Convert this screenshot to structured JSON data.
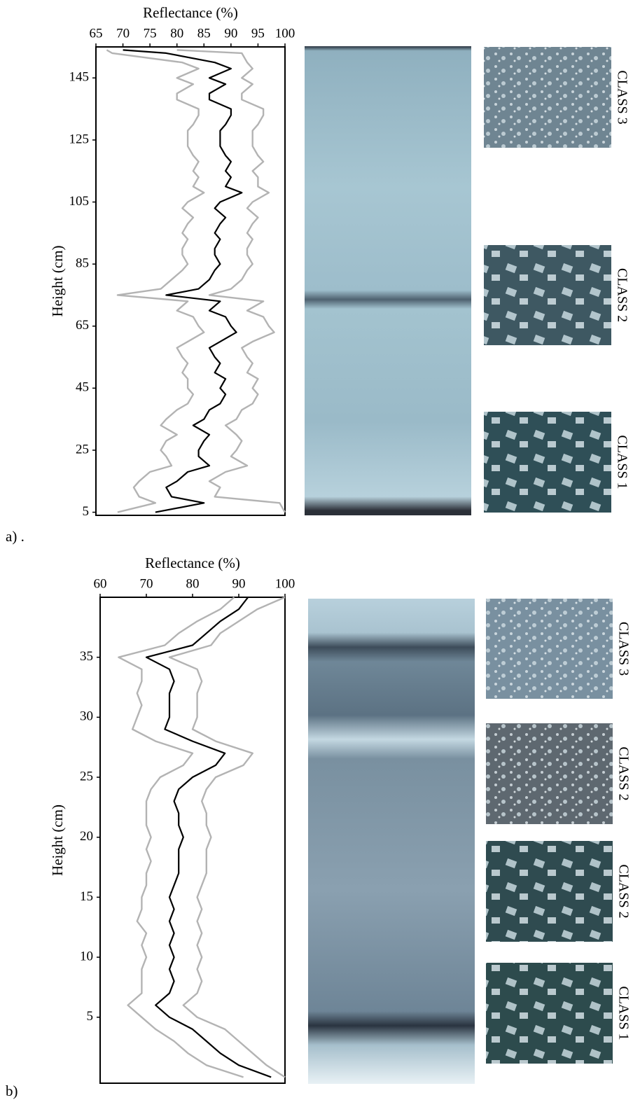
{
  "chart_data": [
    {
      "type": "line",
      "panel_label": "a) .",
      "xlabel": "Reflectance (%)",
      "ylabel": "Height (cm)",
      "xlim": [
        65,
        100
      ],
      "xticks": [
        65,
        70,
        75,
        80,
        85,
        90,
        95,
        100
      ],
      "ylim": [
        4,
        155
      ],
      "yticks": [
        5,
        25,
        45,
        65,
        85,
        105,
        125,
        145
      ],
      "heights": [
        5,
        8,
        10,
        13,
        15,
        18,
        20,
        23,
        25,
        28,
        30,
        33,
        35,
        38,
        40,
        43,
        45,
        48,
        50,
        53,
        55,
        58,
        60,
        63,
        65,
        68,
        70,
        73,
        75,
        77,
        80,
        83,
        85,
        88,
        90,
        93,
        95,
        98,
        100,
        103,
        105,
        108,
        110,
        113,
        115,
        118,
        120,
        123,
        125,
        128,
        130,
        133,
        135,
        138,
        140,
        143,
        145,
        148,
        150,
        153,
        154
      ],
      "series": [
        {
          "color": "#b3b3b3",
          "values": [
            69,
            76,
            73,
            72,
            73,
            75,
            79,
            78,
            77,
            78,
            80,
            77,
            78,
            80,
            82,
            83,
            82,
            82,
            81,
            82,
            81,
            80,
            82,
            85,
            84,
            83,
            80,
            82,
            69,
            77,
            79,
            81,
            82,
            81,
            81,
            82,
            81,
            82,
            83,
            81,
            82,
            85,
            83,
            84,
            83,
            84,
            83,
            82,
            82,
            82,
            83,
            84,
            84,
            80,
            80,
            83,
            80,
            84,
            81,
            68,
            67
          ]
        },
        {
          "color": "#b3b3b3",
          "values": [
            100,
            99,
            87,
            88,
            86,
            89,
            93,
            90,
            91,
            92,
            91,
            89,
            91,
            92,
            94,
            95,
            94,
            95,
            93,
            94,
            93,
            92,
            94,
            98,
            97,
            96,
            93,
            96,
            86,
            90,
            92,
            93,
            94,
            93,
            93,
            94,
            93,
            94,
            95,
            93,
            94,
            97,
            95,
            95,
            94,
            96,
            95,
            94,
            94,
            94,
            95,
            96,
            96,
            92,
            92,
            94,
            92,
            94,
            93,
            92,
            80
          ]
        },
        {
          "color": "#000000",
          "values": [
            76,
            85,
            79,
            78,
            80,
            82,
            86,
            84,
            84,
            85,
            86,
            83,
            85,
            86,
            88,
            89,
            88,
            89,
            87,
            88,
            87,
            86,
            88,
            91,
            90,
            89,
            86,
            88,
            78,
            84,
            86,
            87,
            88,
            87,
            87,
            88,
            87,
            88,
            89,
            87,
            88,
            92,
            89,
            90,
            89,
            90,
            89,
            88,
            88,
            88,
            89,
            90,
            90,
            86,
            86,
            89,
            86,
            90,
            87,
            78,
            70
          ]
        }
      ],
      "class_labels": [
        "CLASS 3",
        "CLASS 2",
        "CLASS 1"
      ]
    },
    {
      "type": "line",
      "panel_label": "b)",
      "xlabel": "Reflectance (%)",
      "ylabel": "Height (cm)",
      "xlim": [
        60,
        100
      ],
      "xticks": [
        60,
        70,
        80,
        90,
        100
      ],
      "ylim": [
        -0.5,
        40
      ],
      "yticks": [
        5,
        10,
        15,
        20,
        25,
        30,
        35
      ],
      "heights": [
        0,
        1,
        2,
        3,
        4,
        5,
        6,
        7,
        8,
        9,
        10,
        11,
        12,
        13,
        14,
        15,
        16,
        17,
        18,
        19,
        20,
        21,
        22,
        23,
        24,
        25,
        26,
        27,
        28,
        29,
        30,
        31,
        32,
        33,
        34,
        35,
        36,
        37,
        38,
        39,
        40
      ],
      "series": [
        {
          "color": "#b3b3b3",
          "values": [
            91,
            83,
            79,
            76,
            72,
            69,
            66,
            69,
            69,
            69,
            70,
            69,
            70,
            68,
            69,
            69,
            70,
            70,
            71,
            70,
            71,
            70,
            70,
            70,
            71,
            73,
            78,
            80,
            72,
            67,
            68,
            69,
            68,
            69,
            69,
            64,
            74,
            77,
            81,
            86,
            89
          ]
        },
        {
          "color": "#b3b3b3",
          "values": [
            100,
            96,
            93,
            90,
            87,
            81,
            78,
            81,
            82,
            81,
            82,
            81,
            82,
            81,
            82,
            81,
            82,
            83,
            83,
            83,
            84,
            83,
            83,
            82,
            83,
            85,
            91,
            93,
            85,
            80,
            81,
            81,
            81,
            82,
            81,
            75,
            84,
            86,
            90,
            94,
            100
          ]
        },
        {
          "color": "#000000",
          "values": [
            97,
            90,
            86,
            83,
            80,
            75,
            72,
            75,
            76,
            75,
            76,
            75,
            76,
            75,
            76,
            75,
            76,
            77,
            77,
            77,
            78,
            77,
            77,
            76,
            77,
            80,
            85,
            87,
            80,
            74,
            75,
            75,
            75,
            76,
            75,
            70,
            80,
            83,
            86,
            90,
            92
          ]
        }
      ],
      "class_labels": [
        "CLASS 3",
        "CLASS 2",
        "CLASS 2",
        "CLASS 1"
      ]
    }
  ]
}
